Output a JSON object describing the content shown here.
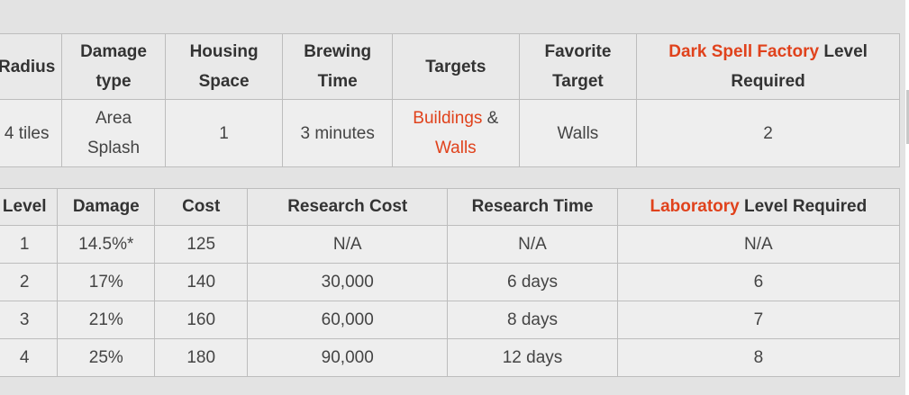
{
  "spell_table": {
    "headers": {
      "radius": "Radius",
      "damage_type": [
        "Damage",
        "type"
      ],
      "housing_space": [
        "Housing",
        "Space"
      ],
      "brewing_time": [
        "Brewing",
        "Time"
      ],
      "targets": "Targets",
      "favorite_target": [
        "Favorite",
        "Target"
      ],
      "factory_link": "Dark Spell Factory",
      "factory_suffix": "Level",
      "factory_line2": "Required"
    },
    "row": {
      "radius": "4 tiles",
      "damage_type": [
        "Area",
        "Splash"
      ],
      "housing_space": "1",
      "brewing_time": "3 minutes",
      "targets_link1": "Buildings",
      "targets_amp": " &",
      "targets_link2": "Walls",
      "favorite_target": "Walls",
      "factory_level": "2"
    }
  },
  "level_table": {
    "headers": {
      "level": "Level",
      "damage": "Damage",
      "cost": "Cost",
      "research_cost": "Research Cost",
      "research_time": "Research Time",
      "lab_link": "Laboratory",
      "lab_suffix": " Level Required"
    },
    "rows": [
      {
        "level": "1",
        "damage": "14.5%*",
        "cost": "125",
        "research_cost": "N/A",
        "research_time": "N/A",
        "lab_level": "N/A"
      },
      {
        "level": "2",
        "damage": "17%",
        "cost": "140",
        "research_cost": "30,000",
        "research_time": "6 days",
        "lab_level": "6"
      },
      {
        "level": "3",
        "damage": "21%",
        "cost": "160",
        "research_cost": "60,000",
        "research_time": "8 days",
        "lab_level": "7"
      },
      {
        "level": "4",
        "damage": "25%",
        "cost": "180",
        "research_cost": "90,000",
        "research_time": "12 days",
        "lab_level": "8"
      }
    ]
  }
}
